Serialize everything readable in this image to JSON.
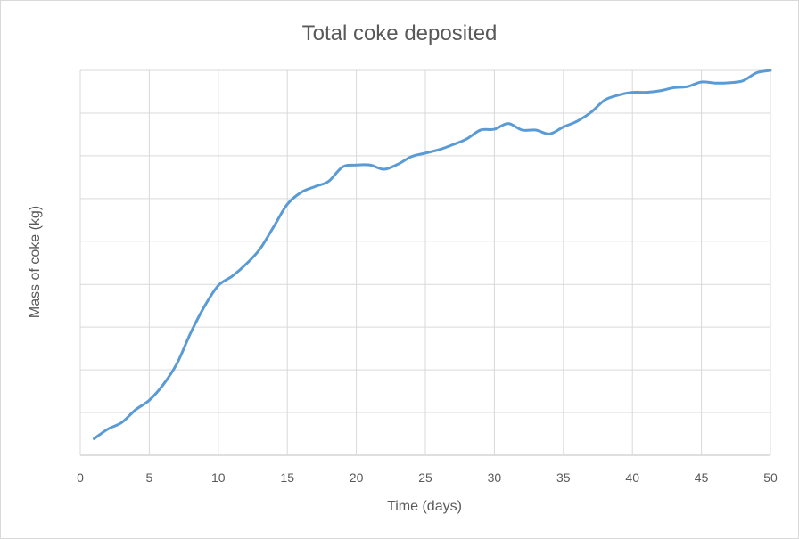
{
  "chart_data": {
    "type": "line",
    "title": "Total coke deposited",
    "xlabel": "Time (days)",
    "ylabel": "Mass of coke (kg)",
    "xlim": [
      0,
      50
    ],
    "ylim": [
      0,
      1
    ],
    "xticks": [
      0,
      5,
      10,
      15,
      20,
      25,
      30,
      35,
      40,
      45,
      50
    ],
    "y_gridlines": [
      0,
      0.111,
      0.222,
      0.333,
      0.444,
      0.556,
      0.667,
      0.778,
      0.889,
      1.0
    ],
    "y_tick_labels_visible": false,
    "grid": true,
    "legend": "none",
    "smooth": true,
    "series": [
      {
        "color": "#5B9BD5",
        "x": [
          1,
          2,
          3,
          4,
          5,
          6,
          7,
          8,
          9,
          10,
          11,
          12,
          13,
          14,
          15,
          16,
          17,
          18,
          19,
          20,
          21,
          22,
          23,
          24,
          25,
          26,
          27,
          28,
          29,
          30,
          31,
          32,
          33,
          34,
          35,
          36,
          37,
          38,
          39,
          40,
          41,
          42,
          43,
          44,
          45,
          46,
          47,
          48,
          49,
          50
        ],
        "y": [
          0.043,
          0.068,
          0.085,
          0.118,
          0.143,
          0.183,
          0.238,
          0.318,
          0.387,
          0.441,
          0.465,
          0.496,
          0.535,
          0.593,
          0.652,
          0.683,
          0.698,
          0.712,
          0.749,
          0.754,
          0.754,
          0.743,
          0.756,
          0.776,
          0.785,
          0.794,
          0.807,
          0.822,
          0.845,
          0.847,
          0.862,
          0.845,
          0.845,
          0.835,
          0.853,
          0.868,
          0.891,
          0.923,
          0.936,
          0.943,
          0.943,
          0.947,
          0.955,
          0.958,
          0.97,
          0.967,
          0.968,
          0.973,
          0.994,
          1.0
        ]
      }
    ]
  }
}
